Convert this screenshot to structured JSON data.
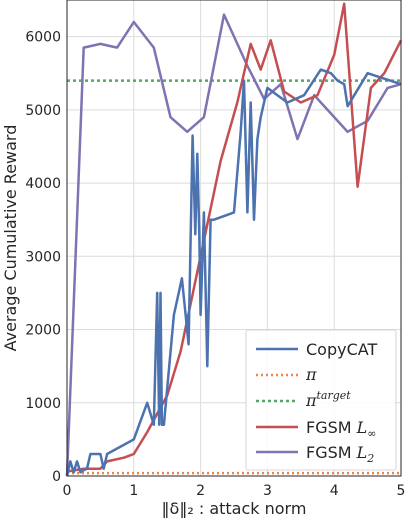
{
  "chart_data": {
    "type": "line",
    "xlabel": "‖δ‖₂ : attack norm",
    "ylabel": "Average Cumulative Reward",
    "xlim": [
      0,
      5
    ],
    "ylim": [
      0,
      6500
    ],
    "xticks": [
      0,
      1,
      2,
      3,
      4,
      5
    ],
    "yticks": [
      0,
      1000,
      2000,
      3000,
      4000,
      5000,
      6000
    ],
    "xtick_labels": [
      "0",
      "1",
      "2",
      "3",
      "4",
      "5"
    ],
    "ytick_labels": [
      "0",
      "1000",
      "2000",
      "3000",
      "4000",
      "5000",
      "6000"
    ],
    "grid": true,
    "legend_position": "bottom-right",
    "series": [
      {
        "name": "CopyCAT",
        "color": "#4c72b0",
        "style": "solid",
        "x": [
          0,
          0.05,
          0.1,
          0.15,
          0.2,
          0.25,
          0.3,
          0.35,
          0.4,
          0.5,
          0.55,
          0.6,
          1.0,
          1.2,
          1.3,
          1.35,
          1.38,
          1.4,
          1.42,
          1.45,
          1.6,
          1.72,
          1.82,
          1.88,
          1.92,
          1.95,
          1.98,
          2.0,
          2.05,
          2.1,
          2.15,
          2.2,
          2.5,
          2.6,
          2.65,
          2.7,
          2.75,
          2.8,
          2.85,
          2.9,
          3.0,
          3.15,
          3.3,
          3.55,
          3.8,
          3.95,
          4.05,
          4.15,
          4.2,
          4.5,
          5.0
        ],
        "y": [
          0,
          200,
          50,
          200,
          50,
          80,
          100,
          300,
          300,
          300,
          100,
          300,
          500,
          1000,
          700,
          2500,
          700,
          2500,
          700,
          700,
          2200,
          2700,
          1800,
          4650,
          3300,
          4400,
          3300,
          2200,
          3600,
          1500,
          3500,
          3500,
          3600,
          4700,
          5400,
          3600,
          5100,
          3500,
          4600,
          4900,
          5300,
          5200,
          5100,
          5200,
          5550,
          5500,
          5400,
          5350,
          5050,
          5500,
          5350
        ]
      },
      {
        "name": "π",
        "color": "#ee854a",
        "style": "dotted",
        "x": [
          0,
          5
        ],
        "y": [
          40,
          40
        ]
      },
      {
        "name": "π^target",
        "color": "#55a868",
        "style": "dashed",
        "x": [
          0,
          5
        ],
        "y": [
          5400,
          5400
        ]
      },
      {
        "name": "FGSM L∞",
        "color": "#c44e52",
        "style": "solid",
        "x": [
          0,
          0.25,
          0.5,
          0.6,
          0.85,
          1.0,
          1.2,
          1.5,
          1.7,
          2.0,
          2.3,
          2.55,
          2.75,
          2.9,
          3.05,
          3.25,
          3.5,
          3.75,
          4.0,
          4.15,
          4.35,
          4.55,
          4.75,
          5.0
        ],
        "y": [
          60,
          100,
          100,
          200,
          250,
          300,
          600,
          1100,
          1700,
          3000,
          4300,
          5100,
          5900,
          5550,
          5950,
          5250,
          5100,
          5200,
          5750,
          6450,
          3950,
          5300,
          5500,
          5950
        ]
      },
      {
        "name": "FGSM L₂",
        "color": "#8172b2",
        "style": "solid",
        "x": [
          0,
          0.25,
          0.5,
          0.75,
          1.0,
          1.3,
          1.55,
          1.8,
          2.05,
          2.35,
          2.7,
          2.95,
          3.2,
          3.45,
          3.7,
          3.95,
          4.2,
          4.5,
          4.8,
          5.0
        ],
        "y": [
          0,
          5850,
          5900,
          5850,
          6200,
          5850,
          4900,
          4700,
          4900,
          6300,
          5600,
          5150,
          5350,
          4600,
          5200,
          4950,
          4700,
          4850,
          5300,
          5350
        ]
      }
    ]
  }
}
